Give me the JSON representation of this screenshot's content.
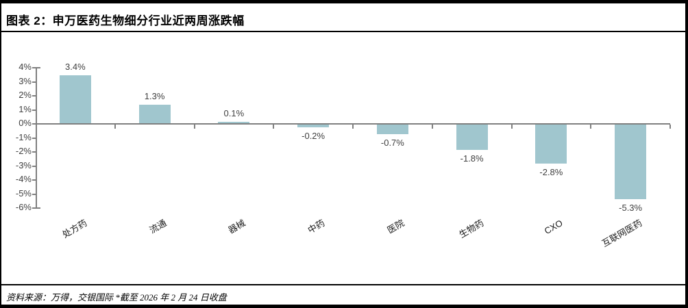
{
  "header": {
    "title": "图表 2：申万医药生物细分行业近两周涨跌幅"
  },
  "footer": {
    "source": "资料来源：万得，交银国际  *截至 2026 年 2 月 24 日收盘"
  },
  "chart_data": {
    "type": "bar",
    "title": "申万医药生物细分行业近两周涨跌幅",
    "categories": [
      "处方药",
      "流通",
      "器械",
      "中药",
      "医院",
      "生物药",
      "CXO",
      "互联网医药"
    ],
    "values": [
      3.4,
      1.3,
      0.1,
      -0.2,
      -0.7,
      -1.8,
      -2.8,
      -5.3
    ],
    "value_labels": [
      "3.4%",
      "1.3%",
      "0.1%",
      "-0.2%",
      "-0.7%",
      "-1.8%",
      "-2.8%",
      "-5.3%"
    ],
    "xlabel": "",
    "ylabel": "",
    "ylim": [
      -6,
      4
    ],
    "ytick_step": 1,
    "ytick_labels": [
      "4%",
      "3%",
      "2%",
      "1%",
      "0%",
      "-1%",
      "-2%",
      "-3%",
      "-4%",
      "-5%",
      "-6%"
    ],
    "grid": false,
    "legend": "none",
    "bar_color": "#A0C6CE",
    "axis_color": "#7F7F7F",
    "label_color": "#404040"
  }
}
